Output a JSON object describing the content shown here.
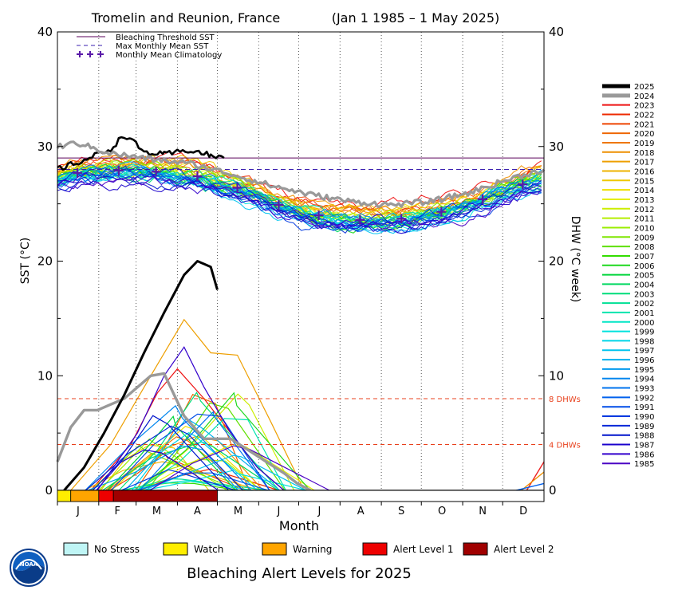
{
  "chart_data": {
    "type": "line",
    "title_location": "Tromelin and Reunion, France",
    "title_dates": "(Jan 1 1985 – 1 May 2025)",
    "xlabel": "Month",
    "ylabel_left": "SST (°C)",
    "ylabel_right": "DHW (°C week)",
    "ylim": [
      0,
      40
    ],
    "y_ticks": [
      "0",
      "10",
      "20",
      "30",
      "40"
    ],
    "months": [
      "J",
      "F",
      "M",
      "A",
      "M",
      "J",
      "J",
      "A",
      "S",
      "O",
      "N",
      "D"
    ],
    "bleaching_threshold_sst": 29.0,
    "max_monthly_mean_sst": 28.0,
    "dhw_reference_lines": [
      {
        "value": 8,
        "label": "8 DHWs"
      },
      {
        "value": 4,
        "label": "4 DHWs"
      }
    ],
    "climatology": {
      "x_day": [
        15,
        46,
        74,
        105,
        135,
        166,
        196,
        227,
        258,
        288,
        319,
        349
      ],
      "y": [
        27.7,
        27.9,
        27.8,
        27.4,
        26.4,
        24.9,
        24.0,
        23.6,
        23.7,
        24.3,
        25.4,
        26.7
      ]
    },
    "sst_series": [
      {
        "year": "2025",
        "x_day": [
          0,
          20,
          40,
          50,
          55,
          65,
          80,
          100,
          115,
          125
        ],
        "y": [
          28.0,
          28.8,
          29.8,
          31.0,
          30.6,
          29.5,
          29.3,
          29.7,
          29.2,
          29.0
        ]
      },
      {
        "year": "2024",
        "x_day": [
          0,
          15,
          40,
          70,
          100,
          130,
          160,
          190,
          220,
          250,
          280,
          310,
          340,
          365
        ],
        "y": [
          30.0,
          30.3,
          29.4,
          28.9,
          28.5,
          27.6,
          26.6,
          25.8,
          25.2,
          24.9,
          25.2,
          26.0,
          27.2,
          28.0
        ]
      }
    ],
    "dhw_series": [
      {
        "year": "2025",
        "x_day": [
          5,
          20,
          35,
          50,
          65,
          80,
          95,
          105,
          115,
          120
        ],
        "y": [
          0.0,
          2.0,
          5.0,
          8.3,
          12.0,
          15.5,
          18.8,
          20.0,
          19.5,
          17.5
        ]
      },
      {
        "year": "2024",
        "x_day": [
          0,
          10,
          20,
          30,
          50,
          70,
          80,
          95,
          110,
          130,
          150,
          170,
          180,
          190
        ],
        "y": [
          2.5,
          5.5,
          7.0,
          7.0,
          8.0,
          10.0,
          10.2,
          6.5,
          4.5,
          4.5,
          3.0,
          1.5,
          0.6,
          0.0
        ]
      },
      {
        "year": "2017",
        "x_day": [
          10,
          40,
          70,
          95,
          115,
          135,
          160,
          185
        ],
        "y": [
          0.0,
          4.0,
          10.0,
          14.9,
          12.0,
          11.8,
          6.0,
          0.0
        ]
      },
      {
        "year": "2023",
        "x_day": [
          25,
          55,
          75,
          90,
          110,
          130,
          150,
          170
        ],
        "y": [
          0.0,
          4.0,
          8.5,
          10.6,
          8.0,
          5.0,
          2.0,
          0.0
        ]
      },
      {
        "year": "1986",
        "x_day": [
          30,
          60,
          80,
          95,
          110,
          130,
          150,
          170
        ],
        "y": [
          0.0,
          5.0,
          10.0,
          12.5,
          9.0,
          5.0,
          2.0,
          0.0
        ]
      }
    ],
    "legend_lines": [
      {
        "label": "Bleaching Threshold SST",
        "color": "#5a005a",
        "style": "solid"
      },
      {
        "label": "Max Monthly Mean SST",
        "color": "#3a1fb0",
        "style": "dashed"
      },
      {
        "label": "Monthly Mean Climatology",
        "color": "#5a1aa8",
        "style": "plus"
      }
    ],
    "years_legend": [
      {
        "year": "2025",
        "color": "#000000"
      },
      {
        "year": "2024",
        "color": "#999999"
      },
      {
        "year": "2023",
        "color": "#ee1111"
      },
      {
        "year": "2022",
        "color": "#ee2a00"
      },
      {
        "year": "2021",
        "color": "#ee4400"
      },
      {
        "year": "2020",
        "color": "#ee6600"
      },
      {
        "year": "2019",
        "color": "#ee7700"
      },
      {
        "year": "2018",
        "color": "#ee8f00"
      },
      {
        "year": "2017",
        "color": "#ee9f00"
      },
      {
        "year": "2016",
        "color": "#eeb300"
      },
      {
        "year": "2015",
        "color": "#eec800"
      },
      {
        "year": "2014",
        "color": "#eee000"
      },
      {
        "year": "2013",
        "color": "#e4ee00"
      },
      {
        "year": "2012",
        "color": "#cced00"
      },
      {
        "year": "2011",
        "color": "#b4ee00"
      },
      {
        "year": "2010",
        "color": "#99ee00"
      },
      {
        "year": "2009",
        "color": "#7fe600"
      },
      {
        "year": "2008",
        "color": "#5fe000"
      },
      {
        "year": "2007",
        "color": "#33dd00"
      },
      {
        "year": "2006",
        "color": "#1dd81d"
      },
      {
        "year": "2005",
        "color": "#00d53a"
      },
      {
        "year": "2004",
        "color": "#00d860"
      },
      {
        "year": "2003",
        "color": "#00dd7a"
      },
      {
        "year": "2002",
        "color": "#00e095"
      },
      {
        "year": "2001",
        "color": "#00e5ae"
      },
      {
        "year": "2000",
        "color": "#00e5c6"
      },
      {
        "year": "1999",
        "color": "#00e2dd"
      },
      {
        "year": "1998",
        "color": "#00d5e8"
      },
      {
        "year": "1997",
        "color": "#00c4ee"
      },
      {
        "year": "1996",
        "color": "#00b0ee"
      },
      {
        "year": "1995",
        "color": "#0099ee"
      },
      {
        "year": "1994",
        "color": "#0086ee"
      },
      {
        "year": "1993",
        "color": "#0073ee"
      },
      {
        "year": "1992",
        "color": "#0060ee"
      },
      {
        "year": "1991",
        "color": "#004ce8"
      },
      {
        "year": "1990",
        "color": "#0038e0"
      },
      {
        "year": "1989",
        "color": "#0026d8"
      },
      {
        "year": "1988",
        "color": "#0014cc"
      },
      {
        "year": "1987",
        "color": "#1a00cc"
      },
      {
        "year": "1986",
        "color": "#3300cc"
      },
      {
        "year": "1985",
        "color": "#4a00c4"
      }
    ],
    "alert_bar_2025": [
      {
        "start_day": 0,
        "end_day": 10,
        "level": "watch"
      },
      {
        "start_day": 10,
        "end_day": 31,
        "level": "warning"
      },
      {
        "start_day": 31,
        "end_day": 42,
        "level": "alert1"
      },
      {
        "start_day": 42,
        "end_day": 120,
        "level": "alert2"
      }
    ],
    "alert_levels": [
      {
        "key": "nostress",
        "label": "No Stress",
        "color": "#bff5f5"
      },
      {
        "key": "watch",
        "label": "Watch",
        "color": "#ffee00"
      },
      {
        "key": "warning",
        "label": "Warning",
        "color": "#ffa500"
      },
      {
        "key": "alert1",
        "label": "Alert Level 1",
        "color": "#ee0000"
      },
      {
        "key": "alert2",
        "label": "Alert Level 2",
        "color": "#a00000"
      }
    ],
    "bottom_title": "Bleaching Alert Levels for 2025"
  },
  "logo_text": "NOAA"
}
